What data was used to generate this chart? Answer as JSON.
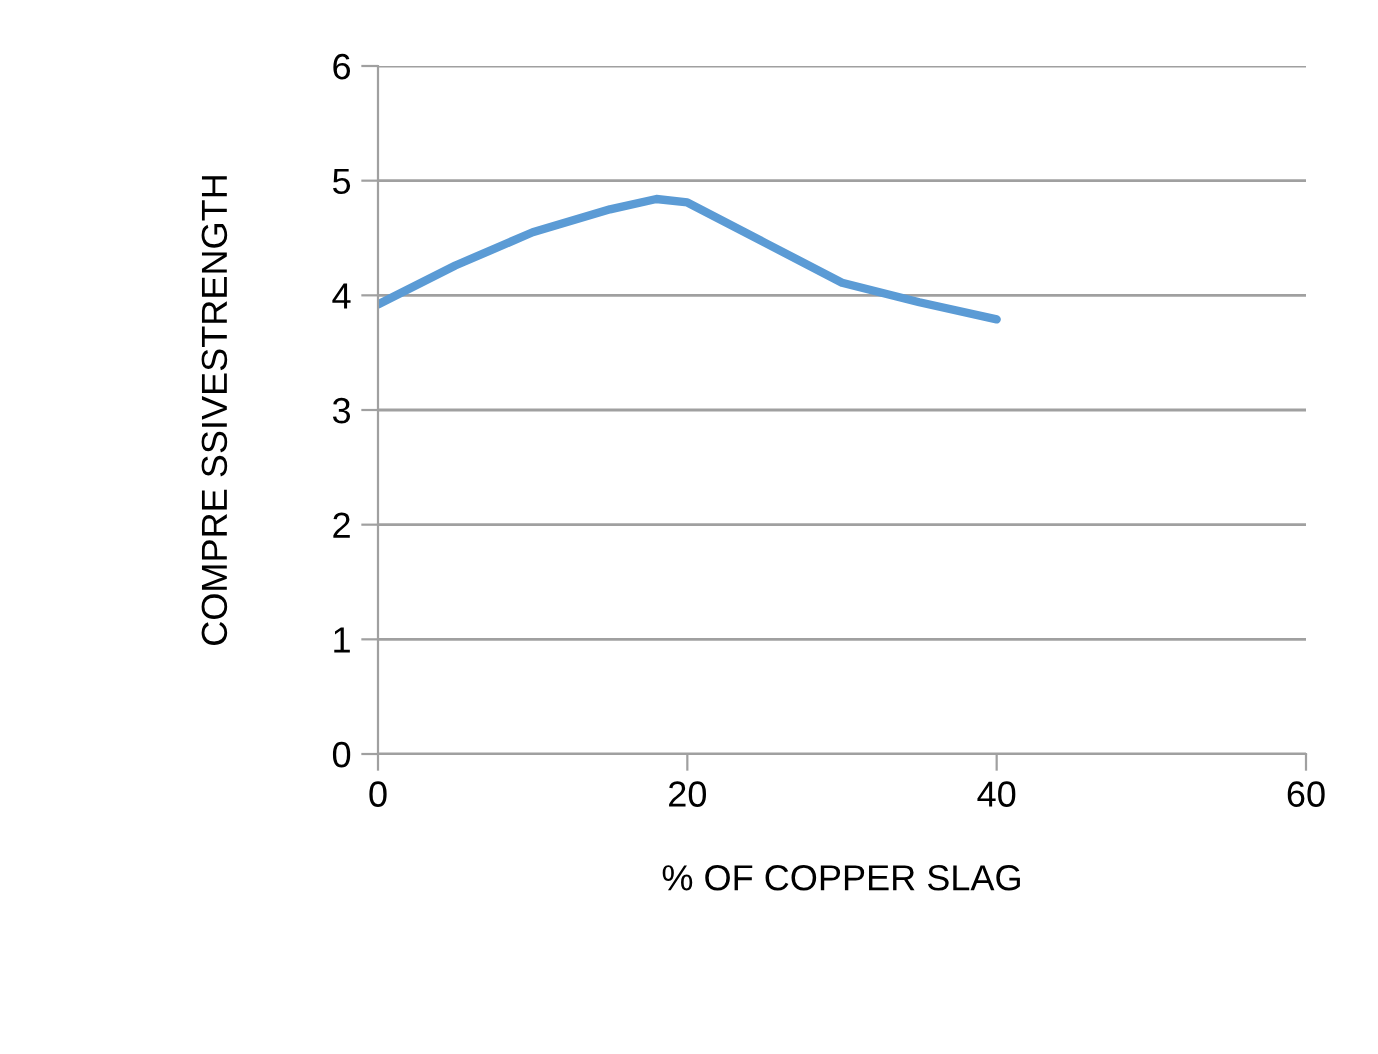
{
  "chart_data": {
    "type": "line",
    "xlabel": "% OF COPPER SLAG",
    "ylabel": "COMPRE SSIVESTRENGTH",
    "x": [
      0,
      5,
      10,
      15,
      18,
      20,
      25,
      30,
      35,
      40
    ],
    "series": [
      {
        "color": "#5b9bd5",
        "values": [
          3.92,
          4.26,
          4.55,
          4.75,
          4.84,
          4.81,
          4.46,
          4.11,
          3.94,
          3.79
        ]
      }
    ],
    "xlim": [
      0,
      60
    ],
    "xticks": [
      0,
      20,
      40,
      60
    ],
    "ylim": [
      0,
      6
    ],
    "yticks": [
      0,
      1,
      2,
      3,
      4,
      5,
      6
    ],
    "grid": "y",
    "legend": false,
    "marker": "none",
    "line_style": "solid"
  }
}
